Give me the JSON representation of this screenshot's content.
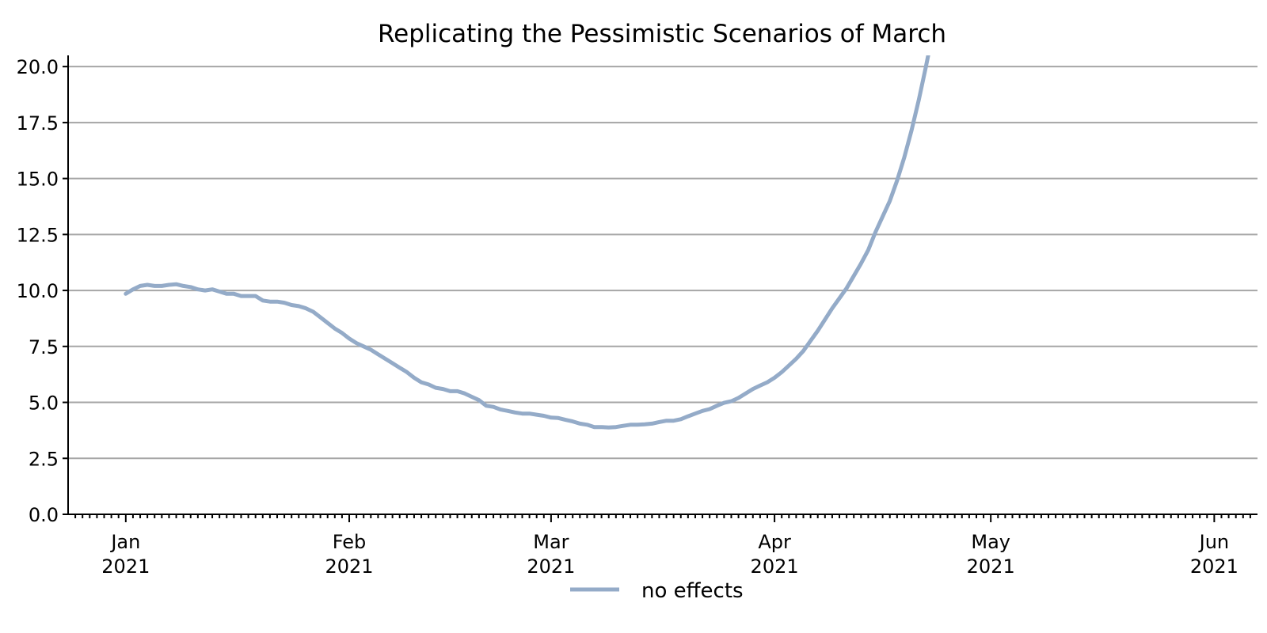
{
  "chart_data": {
    "type": "line",
    "title": "Replicating the Pessimistic Scenarios of March",
    "xlabel": "",
    "ylabel": "",
    "xlim": [
      "2020-12-24",
      "2021-06-07"
    ],
    "ylim": [
      0,
      20.5
    ],
    "grid": "horizontal",
    "legend_position": "bottom-center",
    "y_ticks": [
      0.0,
      2.5,
      5.0,
      7.5,
      10.0,
      12.5,
      15.0,
      17.5,
      20.0
    ],
    "y_tick_labels": [
      "0.0",
      "2.5",
      "5.0",
      "7.5",
      "10.0",
      "12.5",
      "15.0",
      "17.5",
      "20.0"
    ],
    "x_ticks": [
      {
        "date": "2021-01-01",
        "month": "Jan",
        "year": "2021"
      },
      {
        "date": "2021-02-01",
        "month": "Feb",
        "year": "2021"
      },
      {
        "date": "2021-03-01",
        "month": "Mar",
        "year": "2021"
      },
      {
        "date": "2021-04-01",
        "month": "Apr",
        "year": "2021"
      },
      {
        "date": "2021-05-01",
        "month": "May",
        "year": "2021"
      },
      {
        "date": "2021-06-01",
        "month": "Jun",
        "year": "2021"
      }
    ],
    "series": [
      {
        "name": "no effects",
        "color": "#94abc8",
        "points": [
          [
            "2021-01-01",
            9.85
          ],
          [
            "2021-01-02",
            10.05
          ],
          [
            "2021-01-03",
            10.2
          ],
          [
            "2021-01-04",
            10.25
          ],
          [
            "2021-01-05",
            10.2
          ],
          [
            "2021-01-06",
            10.2
          ],
          [
            "2021-01-07",
            10.25
          ],
          [
            "2021-01-08",
            10.28
          ],
          [
            "2021-01-09",
            10.2
          ],
          [
            "2021-01-10",
            10.15
          ],
          [
            "2021-01-11",
            10.05
          ],
          [
            "2021-01-12",
            10.0
          ],
          [
            "2021-01-13",
            10.05
          ],
          [
            "2021-01-14",
            9.95
          ],
          [
            "2021-01-15",
            9.85
          ],
          [
            "2021-01-16",
            9.85
          ],
          [
            "2021-01-17",
            9.75
          ],
          [
            "2021-01-18",
            9.75
          ],
          [
            "2021-01-19",
            9.75
          ],
          [
            "2021-01-20",
            9.55
          ],
          [
            "2021-01-21",
            9.5
          ],
          [
            "2021-01-22",
            9.5
          ],
          [
            "2021-01-23",
            9.45
          ],
          [
            "2021-01-24",
            9.35
          ],
          [
            "2021-01-25",
            9.3
          ],
          [
            "2021-01-26",
            9.2
          ],
          [
            "2021-01-27",
            9.05
          ],
          [
            "2021-01-28",
            8.8
          ],
          [
            "2021-01-29",
            8.55
          ],
          [
            "2021-01-30",
            8.3
          ],
          [
            "2021-01-31",
            8.1
          ],
          [
            "2021-02-01",
            7.85
          ],
          [
            "2021-02-02",
            7.65
          ],
          [
            "2021-02-03",
            7.5
          ],
          [
            "2021-02-04",
            7.35
          ],
          [
            "2021-02-05",
            7.15
          ],
          [
            "2021-02-06",
            6.95
          ],
          [
            "2021-02-07",
            6.75
          ],
          [
            "2021-02-08",
            6.55
          ],
          [
            "2021-02-09",
            6.35
          ],
          [
            "2021-02-10",
            6.1
          ],
          [
            "2021-02-11",
            5.9
          ],
          [
            "2021-02-12",
            5.8
          ],
          [
            "2021-02-13",
            5.65
          ],
          [
            "2021-02-14",
            5.6
          ],
          [
            "2021-02-15",
            5.5
          ],
          [
            "2021-02-16",
            5.5
          ],
          [
            "2021-02-17",
            5.4
          ],
          [
            "2021-02-18",
            5.25
          ],
          [
            "2021-02-19",
            5.1
          ],
          [
            "2021-02-20",
            4.85
          ],
          [
            "2021-02-21",
            4.8
          ],
          [
            "2021-02-22",
            4.68
          ],
          [
            "2021-02-23",
            4.62
          ],
          [
            "2021-02-24",
            4.55
          ],
          [
            "2021-02-25",
            4.5
          ],
          [
            "2021-02-26",
            4.5
          ],
          [
            "2021-02-27",
            4.45
          ],
          [
            "2021-02-28",
            4.4
          ],
          [
            "2021-03-01",
            4.32
          ],
          [
            "2021-03-02",
            4.3
          ],
          [
            "2021-03-03",
            4.22
          ],
          [
            "2021-03-04",
            4.15
          ],
          [
            "2021-03-05",
            4.05
          ],
          [
            "2021-03-06",
            4.0
          ],
          [
            "2021-03-07",
            3.9
          ],
          [
            "2021-03-08",
            3.9
          ],
          [
            "2021-03-09",
            3.88
          ],
          [
            "2021-03-10",
            3.9
          ],
          [
            "2021-03-11",
            3.95
          ],
          [
            "2021-03-12",
            4.0
          ],
          [
            "2021-03-13",
            4.0
          ],
          [
            "2021-03-14",
            4.02
          ],
          [
            "2021-03-15",
            4.05
          ],
          [
            "2021-03-16",
            4.12
          ],
          [
            "2021-03-17",
            4.18
          ],
          [
            "2021-03-18",
            4.18
          ],
          [
            "2021-03-19",
            4.25
          ],
          [
            "2021-03-20",
            4.38
          ],
          [
            "2021-03-21",
            4.5
          ],
          [
            "2021-03-22",
            4.62
          ],
          [
            "2021-03-23",
            4.7
          ],
          [
            "2021-03-24",
            4.85
          ],
          [
            "2021-03-25",
            4.98
          ],
          [
            "2021-03-26",
            5.05
          ],
          [
            "2021-03-27",
            5.2
          ],
          [
            "2021-03-28",
            5.4
          ],
          [
            "2021-03-29",
            5.6
          ],
          [
            "2021-03-30",
            5.75
          ],
          [
            "2021-03-31",
            5.9
          ],
          [
            "2021-04-01",
            6.1
          ],
          [
            "2021-04-02",
            6.35
          ],
          [
            "2021-04-03",
            6.65
          ],
          [
            "2021-04-04",
            6.95
          ],
          [
            "2021-04-05",
            7.3
          ],
          [
            "2021-04-06",
            7.75
          ],
          [
            "2021-04-07",
            8.2
          ],
          [
            "2021-04-08",
            8.7
          ],
          [
            "2021-04-09",
            9.2
          ],
          [
            "2021-04-10",
            9.65
          ],
          [
            "2021-04-11",
            10.1
          ],
          [
            "2021-04-12",
            10.65
          ],
          [
            "2021-04-13",
            11.2
          ],
          [
            "2021-04-14",
            11.8
          ],
          [
            "2021-04-15",
            12.6
          ],
          [
            "2021-04-16",
            13.3
          ],
          [
            "2021-04-17",
            14.0
          ],
          [
            "2021-04-18",
            14.9
          ],
          [
            "2021-04-19",
            15.95
          ],
          [
            "2021-04-20",
            17.15
          ],
          [
            "2021-04-21",
            18.5
          ],
          [
            "2021-04-22",
            20.0
          ],
          [
            "2021-04-23",
            21.6
          ]
        ]
      }
    ]
  }
}
